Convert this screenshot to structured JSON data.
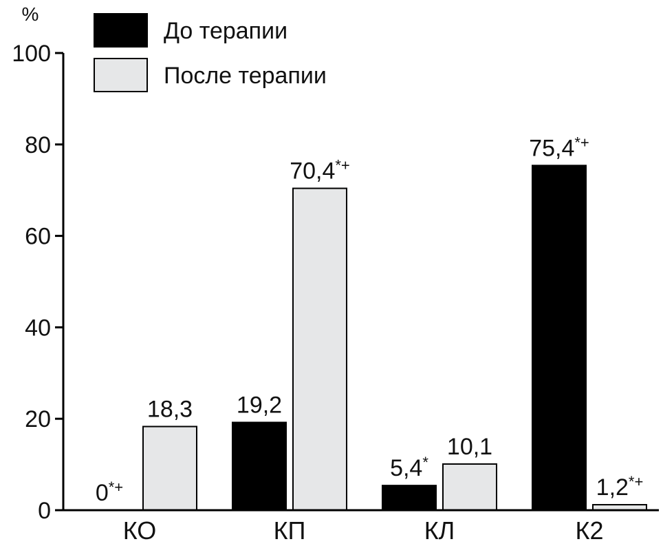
{
  "chart_data": {
    "type": "bar",
    "ylabel": "%",
    "ylim": [
      0,
      100
    ],
    "yticks": [
      0,
      20,
      40,
      60,
      80,
      100
    ],
    "categories": [
      "КО",
      "КП",
      "КЛ",
      "К2"
    ],
    "series": [
      {
        "name": "До терапии",
        "color": "#000000",
        "values": [
          0,
          19.2,
          5.4,
          75.4
        ],
        "labels": [
          {
            "text": "0",
            "mark": "*+"
          },
          {
            "text": "19,2",
            "mark": ""
          },
          {
            "text": "5,4",
            "mark": "*"
          },
          {
            "text": "75,4",
            "mark": "*+"
          }
        ]
      },
      {
        "name": "После терапии",
        "color": "#e6e7e8",
        "values": [
          18.3,
          70.4,
          10.1,
          1.2
        ],
        "labels": [
          {
            "text": "18,3",
            "mark": ""
          },
          {
            "text": "70,4",
            "mark": "*+"
          },
          {
            "text": "10,1",
            "mark": ""
          },
          {
            "text": "1,2",
            "mark": "*+"
          }
        ]
      }
    ],
    "legend": "top-left",
    "grid": false
  }
}
